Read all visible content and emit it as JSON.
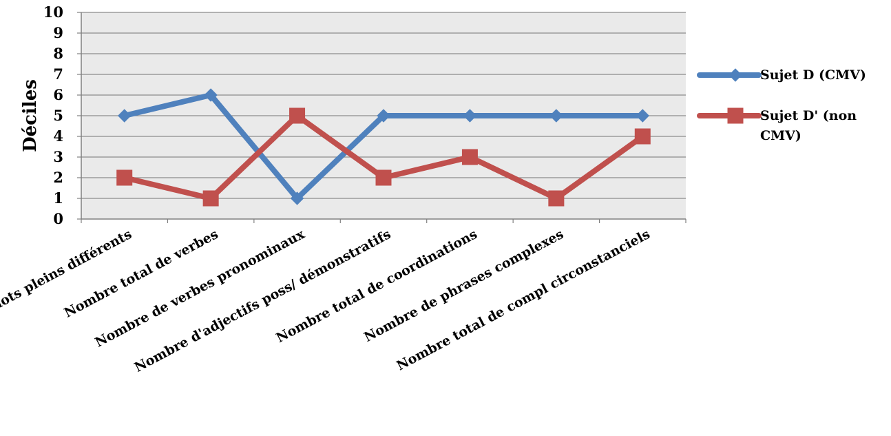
{
  "chart_data": {
    "type": "line",
    "title": "",
    "xlabel": "",
    "ylabel": "Déciles",
    "ylim": [
      0,
      10
    ],
    "yticks": [
      0,
      1,
      2,
      3,
      4,
      5,
      6,
      7,
      8,
      9,
      10
    ],
    "grid": true,
    "legend_position": "right",
    "categories": [
      "Nombre de mots pleins différents",
      "Nombre total de verbes",
      "Nombre de verbes pronominaux",
      "Nombre d'adjectifs poss/ démonstratifs",
      "Nombre total de coordinations",
      "Nombre de phrases complexes",
      "Nombre total de compl circonstanciels"
    ],
    "series": [
      {
        "name": "Sujet D (CMV)",
        "values": [
          5,
          6,
          1,
          5,
          5,
          5,
          5
        ],
        "color": "#4F81BD",
        "marker": "diamond"
      },
      {
        "name": "Sujet D' (non CMV)",
        "name_lines": [
          "Sujet D' (non",
          "CMV)"
        ],
        "values": [
          2,
          1,
          5,
          2,
          3,
          1,
          4
        ],
        "color": "#C0504D",
        "marker": "square"
      }
    ]
  },
  "colors": {
    "plot_background": "#EAEAEA",
    "gridline": "#8C8C8C"
  }
}
